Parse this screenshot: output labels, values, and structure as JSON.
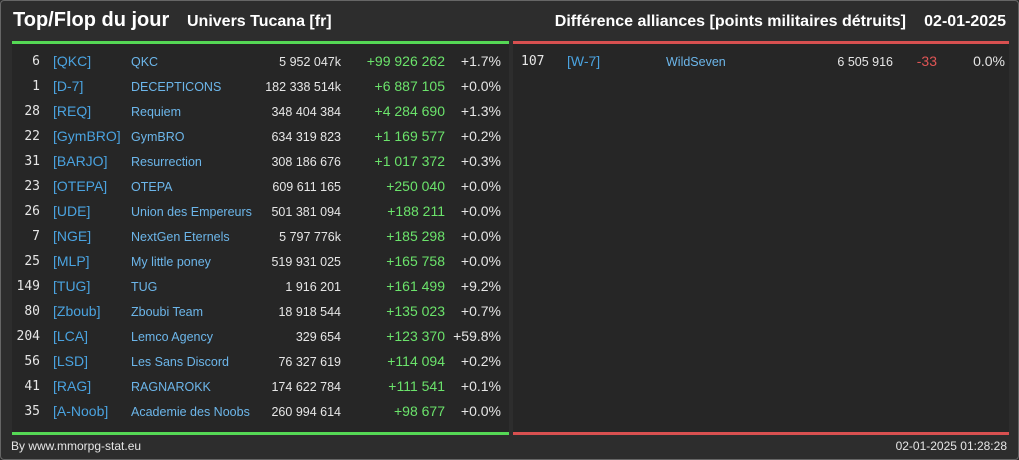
{
  "header": {
    "title": "Top/Flop du jour",
    "subtitle": "Univers Tucana [fr]",
    "right_title": "Différence alliances [points militaires détruits]",
    "date": "02-01-2025"
  },
  "colors": {
    "top_accent": "#55d855",
    "flop_accent": "#d85050",
    "tag": "#4aa3e0",
    "name": "#6cb6ea",
    "gain": "#6be36b",
    "loss": "#e05555"
  },
  "top": [
    {
      "rank": "6",
      "tag": "[QKC]",
      "name": "QKC",
      "points": "5 952 047k",
      "diff": "+99 926 262",
      "pct": "+1.7%"
    },
    {
      "rank": "1",
      "tag": "[D-7]",
      "name": "DECEPTICONS",
      "points": "182 338 514k",
      "diff": "+6 887 105",
      "pct": "+0.0%"
    },
    {
      "rank": "28",
      "tag": "[REQ]",
      "name": "Requiem",
      "points": "348 404 384",
      "diff": "+4 284 690",
      "pct": "+1.3%"
    },
    {
      "rank": "22",
      "tag": "[GymBRO]",
      "name": "GymBRO",
      "points": "634 319 823",
      "diff": "+1 169 577",
      "pct": "+0.2%"
    },
    {
      "rank": "31",
      "tag": "[BARJO]",
      "name": "Resurrection",
      "points": "308 186 676",
      "diff": "+1 017 372",
      "pct": "+0.3%"
    },
    {
      "rank": "23",
      "tag": "[OTEPA]",
      "name": "OTEPA",
      "points": "609 611 165",
      "diff": "+250 040",
      "pct": "+0.0%"
    },
    {
      "rank": "26",
      "tag": "[UDE]",
      "name": "Union des Empereurs",
      "points": "501 381 094",
      "diff": "+188 211",
      "pct": "+0.0%"
    },
    {
      "rank": "7",
      "tag": "[NGE]",
      "name": "NextGen Eternels",
      "points": "5 797 776k",
      "diff": "+185 298",
      "pct": "+0.0%"
    },
    {
      "rank": "25",
      "tag": "[MLP]",
      "name": "My little poney",
      "points": "519 931 025",
      "diff": "+165 758",
      "pct": "+0.0%"
    },
    {
      "rank": "149",
      "tag": "[TUG]",
      "name": "TUG",
      "points": "1 916 201",
      "diff": "+161 499",
      "pct": "+9.2%"
    },
    {
      "rank": "80",
      "tag": "[Zboub]",
      "name": "Zboubi Team",
      "points": "18 918 544",
      "diff": "+135 023",
      "pct": "+0.7%"
    },
    {
      "rank": "204",
      "tag": "[LCA]",
      "name": "Lemco Agency",
      "points": "329 654",
      "diff": "+123 370",
      "pct": "+59.8%"
    },
    {
      "rank": "56",
      "tag": "[LSD]",
      "name": "Les Sans Discord",
      "points": "76 327 619",
      "diff": "+114 094",
      "pct": "+0.2%"
    },
    {
      "rank": "41",
      "tag": "[RAG]",
      "name": "RAGNAROKK",
      "points": "174 622 784",
      "diff": "+111 541",
      "pct": "+0.1%"
    },
    {
      "rank": "35",
      "tag": "[A-Noob]",
      "name": "Academie des Noobs",
      "points": "260 994 614",
      "diff": "+98 677",
      "pct": "+0.0%"
    }
  ],
  "flop": [
    {
      "rank": "107",
      "tag": "[W-7]",
      "name": "WildSeven",
      "points": "6 505 916",
      "diff": "-33",
      "pct": "0.0%"
    }
  ],
  "footer": {
    "credit": "By www.mmorpg-stat.eu",
    "timestamp": "02-01-2025 01:28:28"
  }
}
